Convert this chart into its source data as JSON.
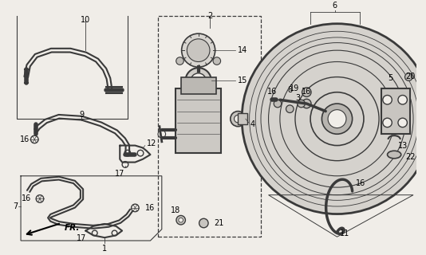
{
  "bg_color": "#f0ede8",
  "line_color": "#3a3a3a",
  "fig_width": 5.34,
  "fig_height": 3.2,
  "dpi": 100
}
